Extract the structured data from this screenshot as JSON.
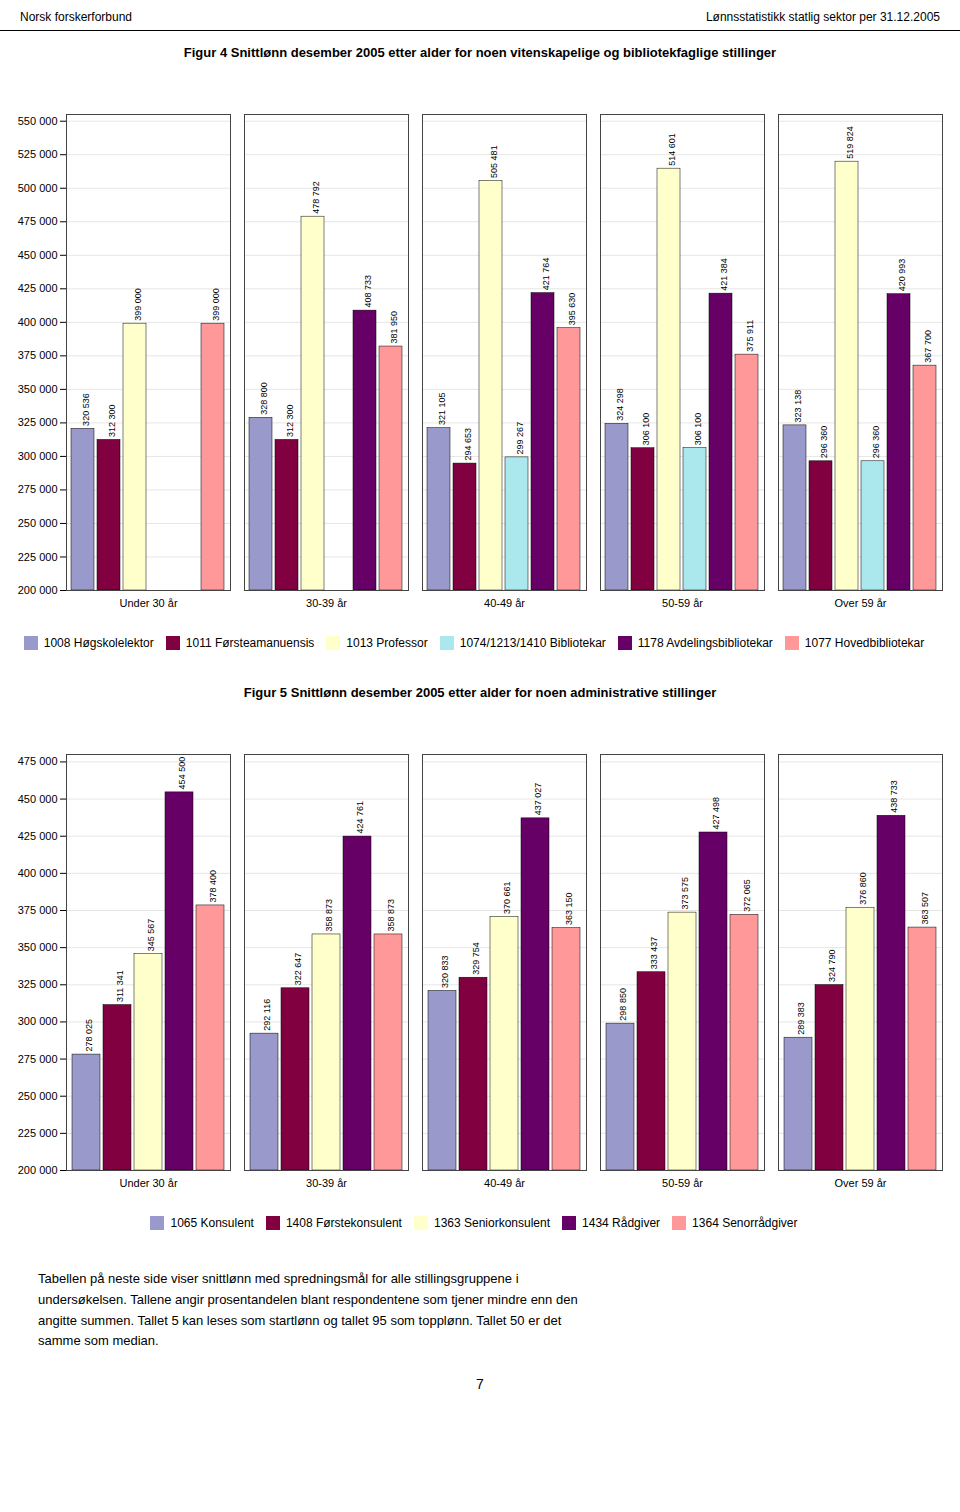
{
  "header_left": "Norsk forskerforbund",
  "header_right": "Lønnsstatistikk statlig sektor per 31.12.2005",
  "footer": "Tabellen på neste side viser snittlønn med spredningsmål for alle stillingsgruppene i\nundersøkelsen. Tallene angir prosentandelen blant respondentene som tjener mindre enn den\nangitte summen. Tallet 5 kan leses som startlønn og tallet 95 som topplønn. Tallet 50 er det\nsamme som median.",
  "page_number": "7",
  "chart_data": [
    {
      "type": "bar",
      "title": "Figur 4 Snittlønn desember 2005 etter alder for noen vitenskapelige og bibliotekfaglige stillinger",
      "categories": [
        "Under 30 år",
        "30-39 år",
        "40-49 år",
        "50-59 år",
        "Over 59 år"
      ],
      "series": [
        {
          "name": "1008 Høgskolelektor",
          "color": "#9999cc",
          "values": [
            320536,
            328800,
            321105,
            324298,
            323138
          ],
          "value_labels": [
            "320 536",
            "328 800",
            "321 105",
            "324 298",
            "323 138"
          ]
        },
        {
          "name": "1011 Førsteamanuensis",
          "color": "#800040",
          "values": [
            312300,
            312300,
            294653,
            306100,
            296360
          ],
          "value_labels": [
            "312 300",
            "312 300",
            "294 653",
            "306 100",
            "296 360"
          ]
        },
        {
          "name": "1013 Professor",
          "color": "#ffffcc",
          "values": [
            399000,
            478792,
            505481,
            514601,
            519824
          ],
          "value_labels": [
            "399 000",
            "478 792",
            "505 481",
            "514 601",
            "519 824"
          ]
        },
        {
          "name": "1074/1213/1410 Bibliotekar",
          "color": "#aae8ee",
          "values": [
            null,
            null,
            299267,
            306100,
            296360
          ],
          "value_labels": [
            null,
            null,
            "299 267",
            "306 100",
            "296 360"
          ]
        },
        {
          "name": "1178 Avdelingsbibliotekar",
          "color": "#660066",
          "values": [
            null,
            408733,
            421764,
            421384,
            420993
          ],
          "value_labels": [
            null,
            "408 733",
            "421 764",
            "421 384",
            "420 993"
          ]
        },
        {
          "name": "1077 Hovedbibliotekar",
          "color": "#ff9999",
          "values": [
            399000,
            381950,
            395630,
            375911,
            367700
          ],
          "value_labels": [
            "399 000",
            "381 950",
            "395 630",
            "375 911",
            "367 700"
          ]
        }
      ],
      "ylim": [
        200000,
        555000
      ],
      "yticks": [
        {
          "value": 200000,
          "label": "200 000"
        },
        {
          "value": 225000,
          "label": "225 000"
        },
        {
          "value": 250000,
          "label": "250 000"
        },
        {
          "value": 275000,
          "label": "275 000"
        },
        {
          "value": 300000,
          "label": "300 000"
        },
        {
          "value": 325000,
          "label": "325 000"
        },
        {
          "value": 350000,
          "label": "350 000"
        },
        {
          "value": 375000,
          "label": "375 000"
        },
        {
          "value": 400000,
          "label": "400 000"
        },
        {
          "value": 425000,
          "label": "425 000"
        },
        {
          "value": 450000,
          "label": "450 000"
        },
        {
          "value": 475000,
          "label": "475 000"
        },
        {
          "value": 500000,
          "label": "500 000"
        },
        {
          "value": 525000,
          "label": "525 000"
        },
        {
          "value": 550000,
          "label": "550 000"
        }
      ],
      "grid": true,
      "data_labels": true,
      "legend": "bottom"
    },
    {
      "type": "bar",
      "title": "Figur 5 Snittlønn desember 2005 etter alder for noen administrative stillinger",
      "categories": [
        "Under 30 år",
        "30-39 år",
        "40-49 år",
        "50-59 år",
        "Over 59 år"
      ],
      "series": [
        {
          "name": "1065 Konsulent",
          "color": "#9999cc",
          "values": [
            278025,
            292116,
            320833,
            298850,
            289383
          ],
          "value_labels": [
            "278 025",
            "292 116",
            "320 833",
            "298 850",
            "289 383"
          ]
        },
        {
          "name": "1408 Førstekonsulent",
          "color": "#800040",
          "values": [
            311341,
            322647,
            329754,
            333437,
            324790
          ],
          "value_labels": [
            "311 341",
            "322 647",
            "329 754",
            "333 437",
            "324 790"
          ]
        },
        {
          "name": "1363 Seniorkonsulent",
          "color": "#ffffcc",
          "values": [
            345567,
            358873,
            370661,
            373575,
            376860
          ],
          "value_labels": [
            "345 567",
            "358 873",
            "370 661",
            "373 575",
            "376 860"
          ]
        },
        {
          "name": "1434 Rådgiver",
          "color": "#660066",
          "values": [
            454500,
            424761,
            437027,
            427498,
            438733
          ],
          "value_labels": [
            "454 500",
            "424 761",
            "437 027",
            "427 498",
            "438 733"
          ]
        },
        {
          "name": "1364 Senorrådgiver",
          "color": "#ff9999",
          "values": [
            378400,
            358873,
            363150,
            372065,
            363507
          ],
          "value_labels": [
            "378 400",
            "358 873",
            "363 150",
            "372 065",
            "363 507"
          ]
        }
      ],
      "ylim": [
        200000,
        480000
      ],
      "yticks": [
        {
          "value": 200000,
          "label": "200 000"
        },
        {
          "value": 225000,
          "label": "225 000"
        },
        {
          "value": 250000,
          "label": "250 000"
        },
        {
          "value": 275000,
          "label": "275 000"
        },
        {
          "value": 300000,
          "label": "300 000"
        },
        {
          "value": 325000,
          "label": "325 000"
        },
        {
          "value": 350000,
          "label": "350 000"
        },
        {
          "value": 375000,
          "label": "375 000"
        },
        {
          "value": 400000,
          "label": "400 000"
        },
        {
          "value": 425000,
          "label": "425 000"
        },
        {
          "value": 450000,
          "label": "450 000"
        },
        {
          "value": 475000,
          "label": "475 000"
        }
      ],
      "grid": true,
      "data_labels": true,
      "legend": "bottom"
    }
  ]
}
